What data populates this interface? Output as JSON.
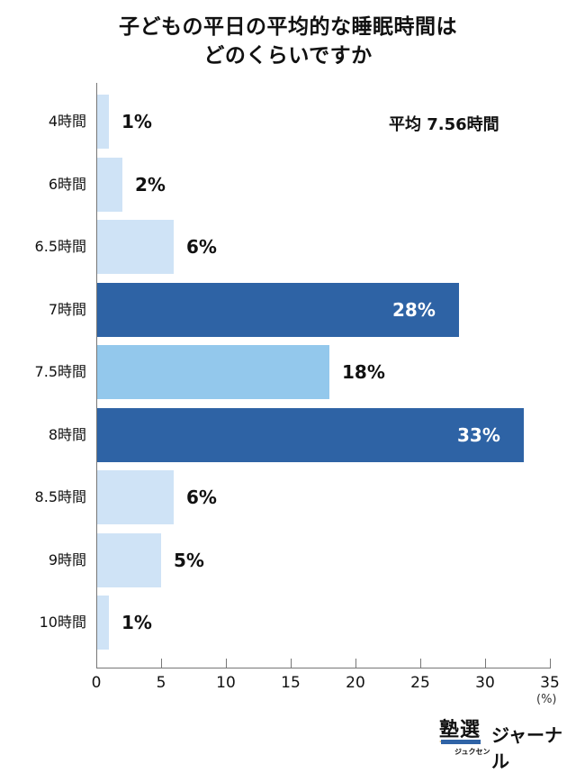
{
  "chart_data": {
    "type": "bar",
    "orientation": "horizontal",
    "title": "子どもの平日の平均的な睡眠時間はどのくらいですか",
    "title_lines": [
      "子どもの平日の平均的な睡眠時間は",
      "どのくらいですか"
    ],
    "annotation": "平均 7.56時間",
    "categories": [
      "4時間",
      "6時間",
      "6.5時間",
      "7時間",
      "7.5時間",
      "8時間",
      "8.5時間",
      "9時間",
      "10時間"
    ],
    "values": [
      1,
      2,
      6,
      28,
      18,
      33,
      6,
      5,
      1
    ],
    "value_labels": [
      "1%",
      "2%",
      "6%",
      "28%",
      "18%",
      "33%",
      "6%",
      "5%",
      "1%"
    ],
    "bar_colors": [
      "#cfe3f6",
      "#cfe3f6",
      "#cfe3f6",
      "#2e63a5",
      "#93c8ec",
      "#2e63a5",
      "#cfe3f6",
      "#cfe3f6",
      "#cfe3f6"
    ],
    "label_inside": [
      false,
      false,
      false,
      true,
      false,
      true,
      false,
      false,
      false
    ],
    "xlabel": "",
    "xunit": "(%)",
    "xlim": [
      0,
      35
    ],
    "xticks": [
      "0",
      "5",
      "10",
      "15",
      "20",
      "25",
      "30",
      "35"
    ],
    "grid": false,
    "legend": null
  },
  "branding": {
    "logo_kanji": "塾選",
    "logo_kana": "ジュクセン",
    "logo_text": "ジャーナル"
  }
}
